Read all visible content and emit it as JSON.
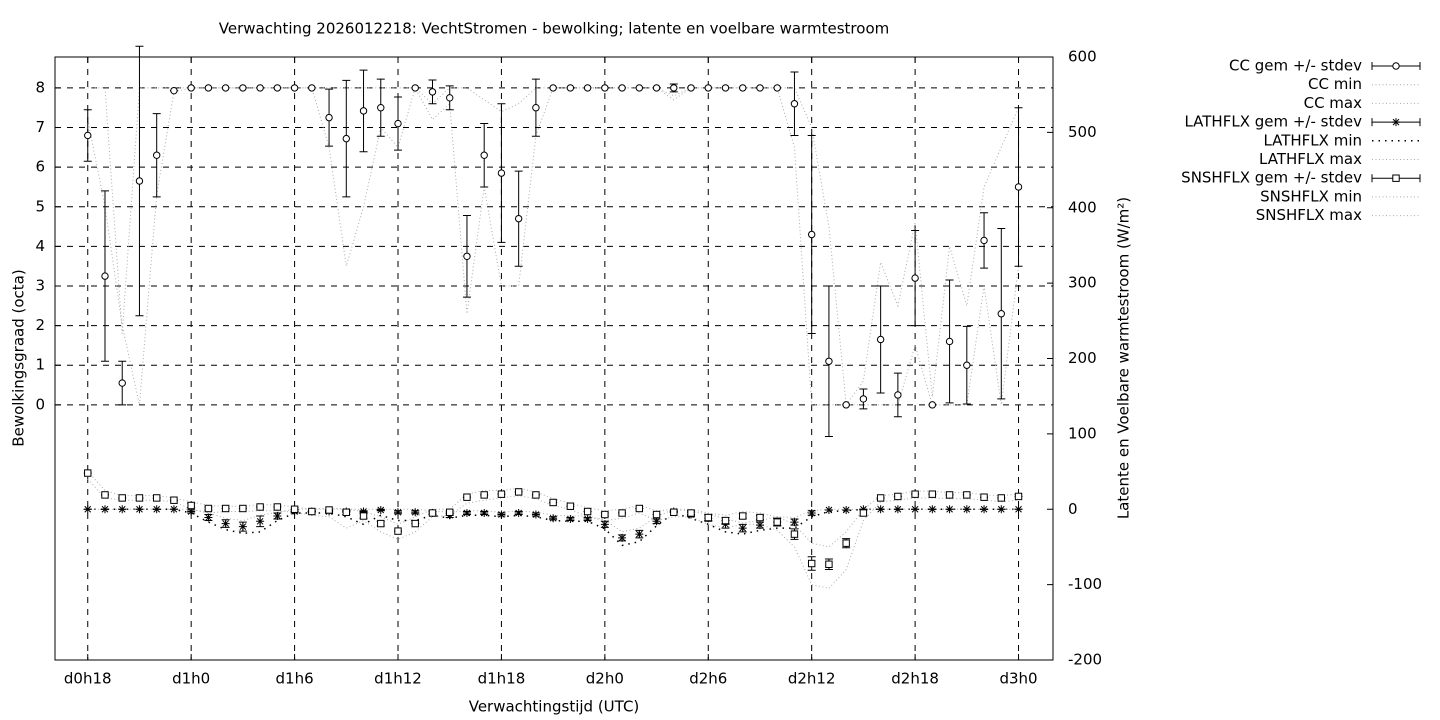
{
  "chart_data": {
    "type": "errorbar",
    "title": "Verwachting 2026012218: VechtStromen - bewolking; latente en voelbare warmtestroom",
    "x_label": "Verwachtingstijd (UTC)",
    "y_label": "Bewolkingsgraad (octa)",
    "y2_label": "Latente en Voelbare warmtestroom (W/m²)",
    "x": [
      18,
      19,
      20,
      21,
      22,
      23,
      24,
      25,
      26,
      27,
      28,
      29,
      30,
      31,
      32,
      33,
      34,
      35,
      36,
      37,
      38,
      39,
      40,
      41,
      42,
      43,
      44,
      45,
      46,
      47,
      48,
      49,
      50,
      51,
      52,
      53,
      54,
      55,
      56,
      57,
      58,
      59,
      60,
      61,
      62,
      63,
      64,
      65,
      66,
      67,
      68,
      69,
      70,
      71,
      72
    ],
    "xlim": [
      16.1,
      74
    ],
    "xticks": [
      {
        "value": 18,
        "label": "d0h18"
      },
      {
        "value": 24,
        "label": "d1h0"
      },
      {
        "value": 30,
        "label": "d1h6"
      },
      {
        "value": 36,
        "label": "d1h12"
      },
      {
        "value": 42,
        "label": "d1h18"
      },
      {
        "value": 48,
        "label": "d2h0"
      },
      {
        "value": 54,
        "label": "d2h6"
      },
      {
        "value": 60,
        "label": "d2h12"
      },
      {
        "value": 66,
        "label": "d2h18"
      },
      {
        "value": 72,
        "label": "d3h0"
      }
    ],
    "ylim": [
      -6.44,
      8.78
    ],
    "yticks": [
      0,
      1,
      2,
      3,
      4,
      5,
      6,
      7,
      8
    ],
    "y2lim": [
      -200,
      600
    ],
    "y2ticks": [
      -200,
      -100,
      0,
      100,
      200,
      300,
      400,
      500,
      600
    ],
    "grid": true,
    "legend": "outside-right",
    "series": [
      {
        "name": "CC gem +/- stdev",
        "axis": "y",
        "marker": "circle",
        "color": "#000000",
        "values": [
          6.8,
          3.25,
          0.55,
          5.65,
          6.3,
          7.93,
          8,
          8,
          8,
          8,
          8,
          8,
          8,
          8,
          7.25,
          6.72,
          7.42,
          7.5,
          7.1,
          8,
          7.9,
          7.75,
          3.75,
          6.3,
          5.85,
          4.7,
          7.5,
          8,
          8,
          8,
          8,
          8,
          8,
          8,
          8,
          8,
          8,
          8,
          8,
          8,
          8,
          7.6,
          4.3,
          1.1,
          0,
          0.15,
          1.65,
          0.25,
          3.2,
          0,
          1.6,
          1.0,
          4.15,
          2.3,
          5.5
        ],
        "errors": [
          0.65,
          2.15,
          0.55,
          3.4,
          1.05,
          0,
          0,
          0,
          0,
          0,
          0,
          0,
          0,
          0,
          0.72,
          1.47,
          1.03,
          0.72,
          0.67,
          0,
          0.3,
          0.3,
          1.03,
          0.8,
          1.75,
          1.2,
          0.72,
          0,
          0,
          0,
          0,
          0,
          0,
          0,
          0.1,
          0,
          0,
          0,
          0,
          0,
          0,
          0.8,
          2.5,
          1.9,
          0,
          0.25,
          1.35,
          0.55,
          1.2,
          0,
          1.55,
          0.98,
          0.7,
          2.15,
          2.0
        ]
      },
      {
        "name": "CC min",
        "axis": "y",
        "style": "dotted",
        "color": "#aaaaaa",
        "values": [
          7.2,
          5.0,
          2.0,
          0.0,
          5.3,
          7.9,
          8,
          8,
          8,
          8,
          8,
          8,
          8,
          8,
          6.5,
          3.5,
          5.0,
          7.0,
          6.5,
          8,
          7.2,
          7.6,
          2.3,
          5.5,
          3.0,
          3.0,
          6.8,
          8,
          8,
          8,
          8,
          8,
          8,
          8,
          7.8,
          8,
          8,
          8,
          8,
          8,
          8,
          6.5,
          0,
          0,
          0,
          0,
          0,
          0,
          1.5,
          0,
          0,
          0,
          3.0,
          0,
          3.5
        ]
      },
      {
        "name": "CC max",
        "axis": "y",
        "style": "dotted",
        "color": "#aaaaaa",
        "values": [
          8,
          8,
          1.8,
          8,
          8,
          8,
          8,
          8,
          8,
          8,
          8,
          8,
          8,
          8,
          8,
          8,
          8,
          8,
          8,
          8,
          7.6,
          8,
          8,
          7.7,
          7.4,
          7.6,
          8,
          8,
          8,
          8,
          8,
          8,
          8,
          8,
          7.7,
          8,
          8,
          8,
          8,
          8,
          8,
          8,
          7.0,
          4.5,
          0,
          0.6,
          3.6,
          2.5,
          4.6,
          0.2,
          4.0,
          2.5,
          5.5,
          6.5,
          7.5
        ]
      },
      {
        "name": "LATHFLX gem +/- stdev",
        "axis": "y2",
        "marker": "star",
        "color": "#000000",
        "values": [
          0,
          0,
          0,
          0,
          0,
          0,
          -3,
          -11,
          -19,
          -23,
          -16,
          -9,
          -3,
          -3,
          -3,
          -3,
          -3,
          -1,
          -4,
          -4,
          -5,
          -8,
          -5,
          -5,
          -7,
          -5,
          -7,
          -12,
          -13,
          -13,
          -20,
          -38,
          -33,
          -16,
          -3,
          -7,
          -12,
          -20,
          -25,
          -21,
          -17,
          -17,
          -5,
          -1,
          -1,
          0,
          0,
          0,
          0,
          0,
          0,
          0,
          0,
          0,
          0
        ],
        "errors": [
          0,
          0,
          0,
          0,
          0,
          0,
          2,
          4,
          5,
          6,
          7,
          4,
          2,
          1,
          1,
          1,
          1,
          1,
          2,
          2,
          2,
          3,
          2,
          2,
          2,
          2,
          2,
          2,
          2,
          2,
          4,
          4,
          5,
          3,
          1,
          3,
          4,
          5,
          5,
          4,
          5,
          4,
          3,
          0,
          0,
          0,
          0,
          0,
          0,
          0,
          0,
          0,
          0,
          0,
          0
        ]
      },
      {
        "name": "LATHFLX min",
        "axis": "y2",
        "style": "dotted-dark",
        "color": "#000000",
        "values": [
          0,
          0,
          0,
          0,
          0,
          0,
          -5,
          -17,
          -27,
          -32,
          -30,
          -15,
          -5,
          -5,
          -5,
          -10,
          -20,
          -8,
          -15,
          -15,
          -8,
          -12,
          -8,
          -8,
          -10,
          -8,
          -10,
          -15,
          -16,
          -16,
          -26,
          -48,
          -43,
          -22,
          -5,
          -12,
          -20,
          -30,
          -33,
          -28,
          -25,
          -25,
          -10,
          -3,
          -2,
          0,
          0,
          0,
          0,
          0,
          0,
          0,
          0,
          0,
          0
        ]
      },
      {
        "name": "LATHFLX max",
        "axis": "y2",
        "style": "dotted",
        "color": "#aaaaaa",
        "values": [
          0,
          0,
          0,
          0,
          0,
          0,
          0,
          -5,
          -12,
          -15,
          -8,
          -4,
          0,
          0,
          0,
          0,
          0,
          0,
          0,
          0,
          -2,
          -4,
          -2,
          -2,
          -4,
          -2,
          -4,
          -8,
          -9,
          -9,
          -14,
          -30,
          -25,
          -10,
          0,
          -3,
          -6,
          -13,
          -18,
          -15,
          -10,
          -11,
          -2,
          0,
          0,
          0,
          0,
          0,
          0,
          0,
          0,
          0,
          0,
          0,
          0
        ]
      },
      {
        "name": "SNSHFLX gem +/- stdev",
        "axis": "y2",
        "marker": "square",
        "color": "#000000",
        "values": [
          48,
          19,
          15,
          15,
          15,
          12,
          5,
          1,
          1,
          1,
          3,
          3,
          0,
          -3,
          -1,
          -4,
          -9,
          -19,
          -29,
          -19,
          -5,
          -4,
          16,
          19,
          20,
          23,
          19,
          9,
          4,
          -3,
          -7,
          -5,
          1,
          -7,
          -4,
          -5,
          -11,
          -15,
          -9,
          -11,
          -17,
          -33,
          -72,
          -73,
          -45,
          -5,
          15,
          17,
          20,
          20,
          19,
          19,
          16,
          15,
          17
        ],
        "errors": [
          0,
          0,
          0,
          0,
          0,
          0,
          3,
          2,
          0,
          0,
          0,
          0,
          0,
          0,
          0,
          3,
          3,
          3,
          0,
          0,
          0,
          2,
          0,
          0,
          0,
          0,
          0,
          0,
          0,
          0,
          2,
          0,
          0,
          0,
          0,
          3,
          4,
          4,
          3,
          3,
          5,
          7,
          9,
          7,
          6,
          4,
          0,
          0,
          0,
          0,
          0,
          0,
          0,
          0,
          0
        ]
      },
      {
        "name": "SNSHFLX min",
        "axis": "y2",
        "style": "dotted",
        "color": "#aaaaaa",
        "values": [
          40,
          15,
          12,
          12,
          12,
          10,
          0,
          -5,
          -3,
          -3,
          -2,
          -2,
          -4,
          -8,
          -10,
          -25,
          -15,
          -30,
          -40,
          -30,
          -10,
          -8,
          8,
          12,
          15,
          18,
          14,
          5,
          0,
          -10,
          -15,
          -12,
          -5,
          -15,
          -10,
          -10,
          -20,
          -25,
          -20,
          -20,
          -28,
          -50,
          -100,
          -105,
          -80,
          -15,
          10,
          12,
          15,
          15,
          14,
          14,
          12,
          10,
          12
        ]
      },
      {
        "name": "SNSHFLX max",
        "axis": "y2",
        "style": "dotted",
        "color": "#aaaaaa",
        "values": [
          50,
          25,
          18,
          18,
          18,
          15,
          10,
          5,
          4,
          4,
          6,
          6,
          3,
          0,
          2,
          0,
          -3,
          -10,
          -20,
          -10,
          0,
          0,
          20,
          25,
          25,
          28,
          23,
          14,
          8,
          2,
          -2,
          0,
          5,
          -2,
          0,
          0,
          -5,
          -8,
          -3,
          -5,
          -10,
          -20,
          -45,
          -50,
          -30,
          0,
          18,
          20,
          24,
          24,
          22,
          22,
          19,
          18,
          20
        ]
      }
    ]
  }
}
